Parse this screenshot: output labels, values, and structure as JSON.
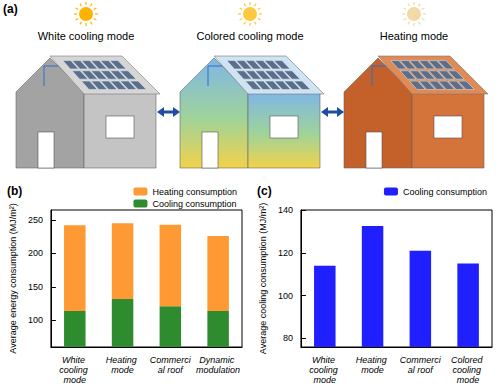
{
  "panel_a": {
    "title": "(a)",
    "labels": [
      "White cooling mode",
      "Colored cooling mode",
      "Heating mode"
    ]
  },
  "chart_data": [
    {
      "type": "bar",
      "title": "(b)",
      "stacked": true,
      "categories": [
        "White cooling mode",
        "Heating mode",
        "Commercial roof",
        "Dynamic modulation"
      ],
      "series": [
        {
          "name": "Cooling consumption",
          "color": "#2e8b2e",
          "values": [
            114,
            132,
            121,
            114
          ]
        },
        {
          "name": "Heating consumption",
          "color": "#ff9933",
          "values": [
            128,
            113,
            122,
            112
          ]
        }
      ],
      "ylabel": "Average energy consumption (MJ/m²)",
      "ylim": [
        60,
        265
      ],
      "yticks": [
        100,
        150,
        200,
        250
      ],
      "grid": false,
      "legend": "upper right"
    },
    {
      "type": "bar",
      "title": "(c)",
      "categories": [
        "White cooling mode",
        "Heating mode",
        "Commercial roof",
        "Colored cooling mode"
      ],
      "series": [
        {
          "name": "Cooling consumption",
          "color": "#1f1fff",
          "values": [
            114,
            132.5,
            121,
            115
          ]
        }
      ],
      "ylabel": "Average cooling consumption (MJ/m²)",
      "ylim": [
        76,
        140
      ],
      "yticks": [
        80,
        100,
        120,
        140
      ],
      "grid": false,
      "legend": "upper right"
    }
  ]
}
